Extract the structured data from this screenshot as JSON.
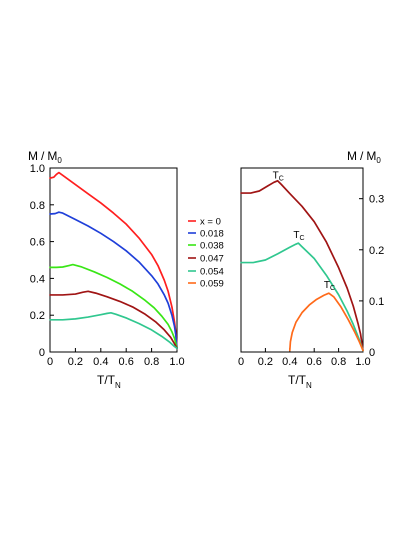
{
  "legend": {
    "entries": [
      {
        "label": "x = 0",
        "color": "#ff1f1f"
      },
      {
        "label": "0.018",
        "color": "#1f3fd9"
      },
      {
        "label": "0.038",
        "color": "#39e616"
      },
      {
        "label": "0.047",
        "color": "#a01414"
      },
      {
        "label": "0.054",
        "color": "#30c78f"
      },
      {
        "label": "0.059",
        "color": "#ff6a1a"
      }
    ]
  },
  "chart_data": [
    {
      "type": "line",
      "ylabel_main": "M",
      "ylabel_sep": "/",
      "ylabel_base": "M",
      "ylabel_sub": "0",
      "xlabel_main": "T/T",
      "xlabel_sub": "N",
      "xlim": [
        0,
        1.0
      ],
      "ylim": [
        0,
        1.0
      ],
      "xticks": [
        0,
        0.2,
        0.4,
        0.6,
        0.8,
        1.0
      ],
      "xtick_labels": [
        "0",
        "0.2",
        "0.4",
        "0.6",
        "0.8",
        "1.0"
      ],
      "yticks": [
        0,
        0.2,
        0.4,
        0.6,
        0.8,
        1.0
      ],
      "ytick_labels": [
        "0",
        "0.2",
        "0.4",
        "0.6",
        "0.8",
        "1.0"
      ],
      "series": [
        {
          "color": "#ff1f1f",
          "x": [
            0,
            0.03,
            0.05,
            0.07,
            0.1,
            0.2,
            0.3,
            0.4,
            0.5,
            0.6,
            0.7,
            0.8,
            0.85,
            0.9,
            0.93,
            0.96,
            0.98,
            0.99,
            1.0
          ],
          "y": [
            0.945,
            0.95,
            0.965,
            0.975,
            0.96,
            0.91,
            0.86,
            0.81,
            0.755,
            0.695,
            0.62,
            0.53,
            0.47,
            0.39,
            0.33,
            0.245,
            0.165,
            0.11,
            0.02
          ]
        },
        {
          "color": "#1f3fd9",
          "x": [
            0,
            0.04,
            0.07,
            0.1,
            0.2,
            0.3,
            0.4,
            0.5,
            0.6,
            0.7,
            0.8,
            0.85,
            0.9,
            0.93,
            0.96,
            0.98,
            0.99,
            1.0
          ],
          "y": [
            0.75,
            0.752,
            0.76,
            0.755,
            0.72,
            0.685,
            0.645,
            0.6,
            0.55,
            0.49,
            0.415,
            0.37,
            0.31,
            0.265,
            0.2,
            0.14,
            0.095,
            0.02
          ]
        },
        {
          "color": "#39e616",
          "x": [
            0,
            0.05,
            0.1,
            0.15,
            0.18,
            0.25,
            0.35,
            0.45,
            0.55,
            0.65,
            0.75,
            0.82,
            0.88,
            0.93,
            0.96,
            0.98,
            0.99,
            1.0
          ],
          "y": [
            0.46,
            0.46,
            0.462,
            0.47,
            0.475,
            0.462,
            0.435,
            0.405,
            0.37,
            0.33,
            0.28,
            0.24,
            0.195,
            0.15,
            0.11,
            0.075,
            0.05,
            0.02
          ]
        },
        {
          "color": "#a01414",
          "x": [
            0,
            0.1,
            0.2,
            0.26,
            0.3,
            0.36,
            0.45,
            0.55,
            0.65,
            0.75,
            0.83,
            0.9,
            0.95,
            0.98,
            1.0
          ],
          "y": [
            0.31,
            0.31,
            0.315,
            0.325,
            0.33,
            0.32,
            0.3,
            0.275,
            0.245,
            0.205,
            0.165,
            0.12,
            0.08,
            0.045,
            0.02
          ]
        },
        {
          "color": "#30c78f",
          "x": [
            0,
            0.1,
            0.2,
            0.3,
            0.4,
            0.45,
            0.48,
            0.52,
            0.6,
            0.7,
            0.8,
            0.88,
            0.94,
            0.98,
            1.0
          ],
          "y": [
            0.175,
            0.175,
            0.18,
            0.19,
            0.203,
            0.21,
            0.213,
            0.205,
            0.185,
            0.155,
            0.12,
            0.085,
            0.055,
            0.03,
            0.02
          ]
        }
      ]
    },
    {
      "type": "line",
      "ylabel_main": "M",
      "ylabel_sep": "/",
      "ylabel_base": "M",
      "ylabel_sub": "0",
      "xlabel_main": "T/T",
      "xlabel_sub": "N",
      "xlim": [
        0,
        1.0
      ],
      "ylim": [
        0,
        0.36
      ],
      "xticks": [
        0,
        0.2,
        0.4,
        0.6,
        0.8,
        1.0
      ],
      "xtick_labels": [
        "0",
        "0.2",
        "0.4",
        "0.6",
        "0.8",
        "1.0"
      ],
      "yticks": [
        0,
        0.1,
        0.2,
        0.3
      ],
      "ytick_labels": [
        "0",
        "0.1",
        "0.2",
        "0.3"
      ],
      "annotations": [
        {
          "text": "T",
          "sub": "C",
          "x": 0.3,
          "y": 0.33
        },
        {
          "text": "T",
          "sub": "C",
          "x": 0.47,
          "y": 0.213
        },
        {
          "text": "T",
          "sub": "C",
          "x": 0.72,
          "y": 0.115
        }
      ],
      "series": [
        {
          "color": "#a01414",
          "x": [
            0,
            0.08,
            0.15,
            0.22,
            0.27,
            0.3,
            0.33,
            0.4,
            0.5,
            0.6,
            0.7,
            0.8,
            0.87,
            0.92,
            0.96,
            0.98,
            1.0
          ],
          "y": [
            0.311,
            0.311,
            0.315,
            0.325,
            0.332,
            0.335,
            0.328,
            0.31,
            0.285,
            0.255,
            0.215,
            0.165,
            0.125,
            0.09,
            0.055,
            0.035,
            0.003
          ]
        },
        {
          "color": "#30c78f",
          "x": [
            0,
            0.1,
            0.2,
            0.3,
            0.4,
            0.45,
            0.47,
            0.5,
            0.6,
            0.7,
            0.8,
            0.87,
            0.92,
            0.96,
            0.98,
            1.0
          ],
          "y": [
            0.175,
            0.175,
            0.18,
            0.192,
            0.205,
            0.211,
            0.213,
            0.206,
            0.183,
            0.15,
            0.112,
            0.08,
            0.054,
            0.03,
            0.017,
            0.003
          ]
        },
        {
          "color": "#ff6a1a",
          "x": [
            0.4,
            0.405,
            0.42,
            0.45,
            0.5,
            0.56,
            0.62,
            0.68,
            0.72,
            0.76,
            0.82,
            0.88,
            0.93,
            0.97,
            1.0
          ],
          "y": [
            0.003,
            0.02,
            0.038,
            0.058,
            0.077,
            0.092,
            0.103,
            0.111,
            0.115,
            0.108,
            0.088,
            0.063,
            0.04,
            0.02,
            0.003
          ]
        }
      ]
    }
  ]
}
